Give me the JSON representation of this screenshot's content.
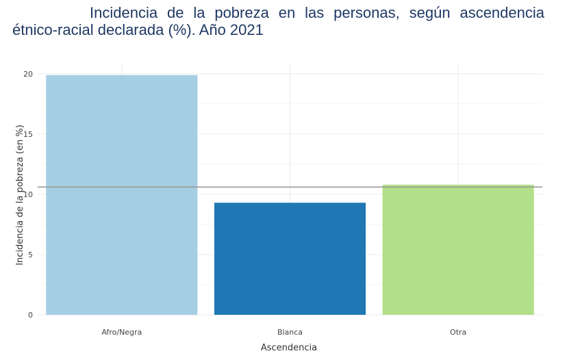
{
  "title": "Incidencia de la pobreza en las personas, según ascendencia étnico-racial declarada (%). Año 2021",
  "chart_data": {
    "type": "bar",
    "title": "Incidencia de la pobreza en las personas, según ascendencia étnico-racial declarada (%). Año 2021",
    "xlabel": "Ascendencia",
    "ylabel": "Incidencia de la pobreza (en %)",
    "categories": [
      "Afro/Negra",
      "Blanca",
      "Otra"
    ],
    "values": [
      19.9,
      9.3,
      10.8
    ],
    "colors": [
      "#a6cee3",
      "#1f78b4",
      "#b2df8a"
    ],
    "reference_line": 10.6,
    "reference_line_color": "#999999",
    "ylim": [
      0,
      20.9
    ],
    "yticks": [
      0,
      5,
      10,
      15,
      20
    ],
    "grid": true
  }
}
